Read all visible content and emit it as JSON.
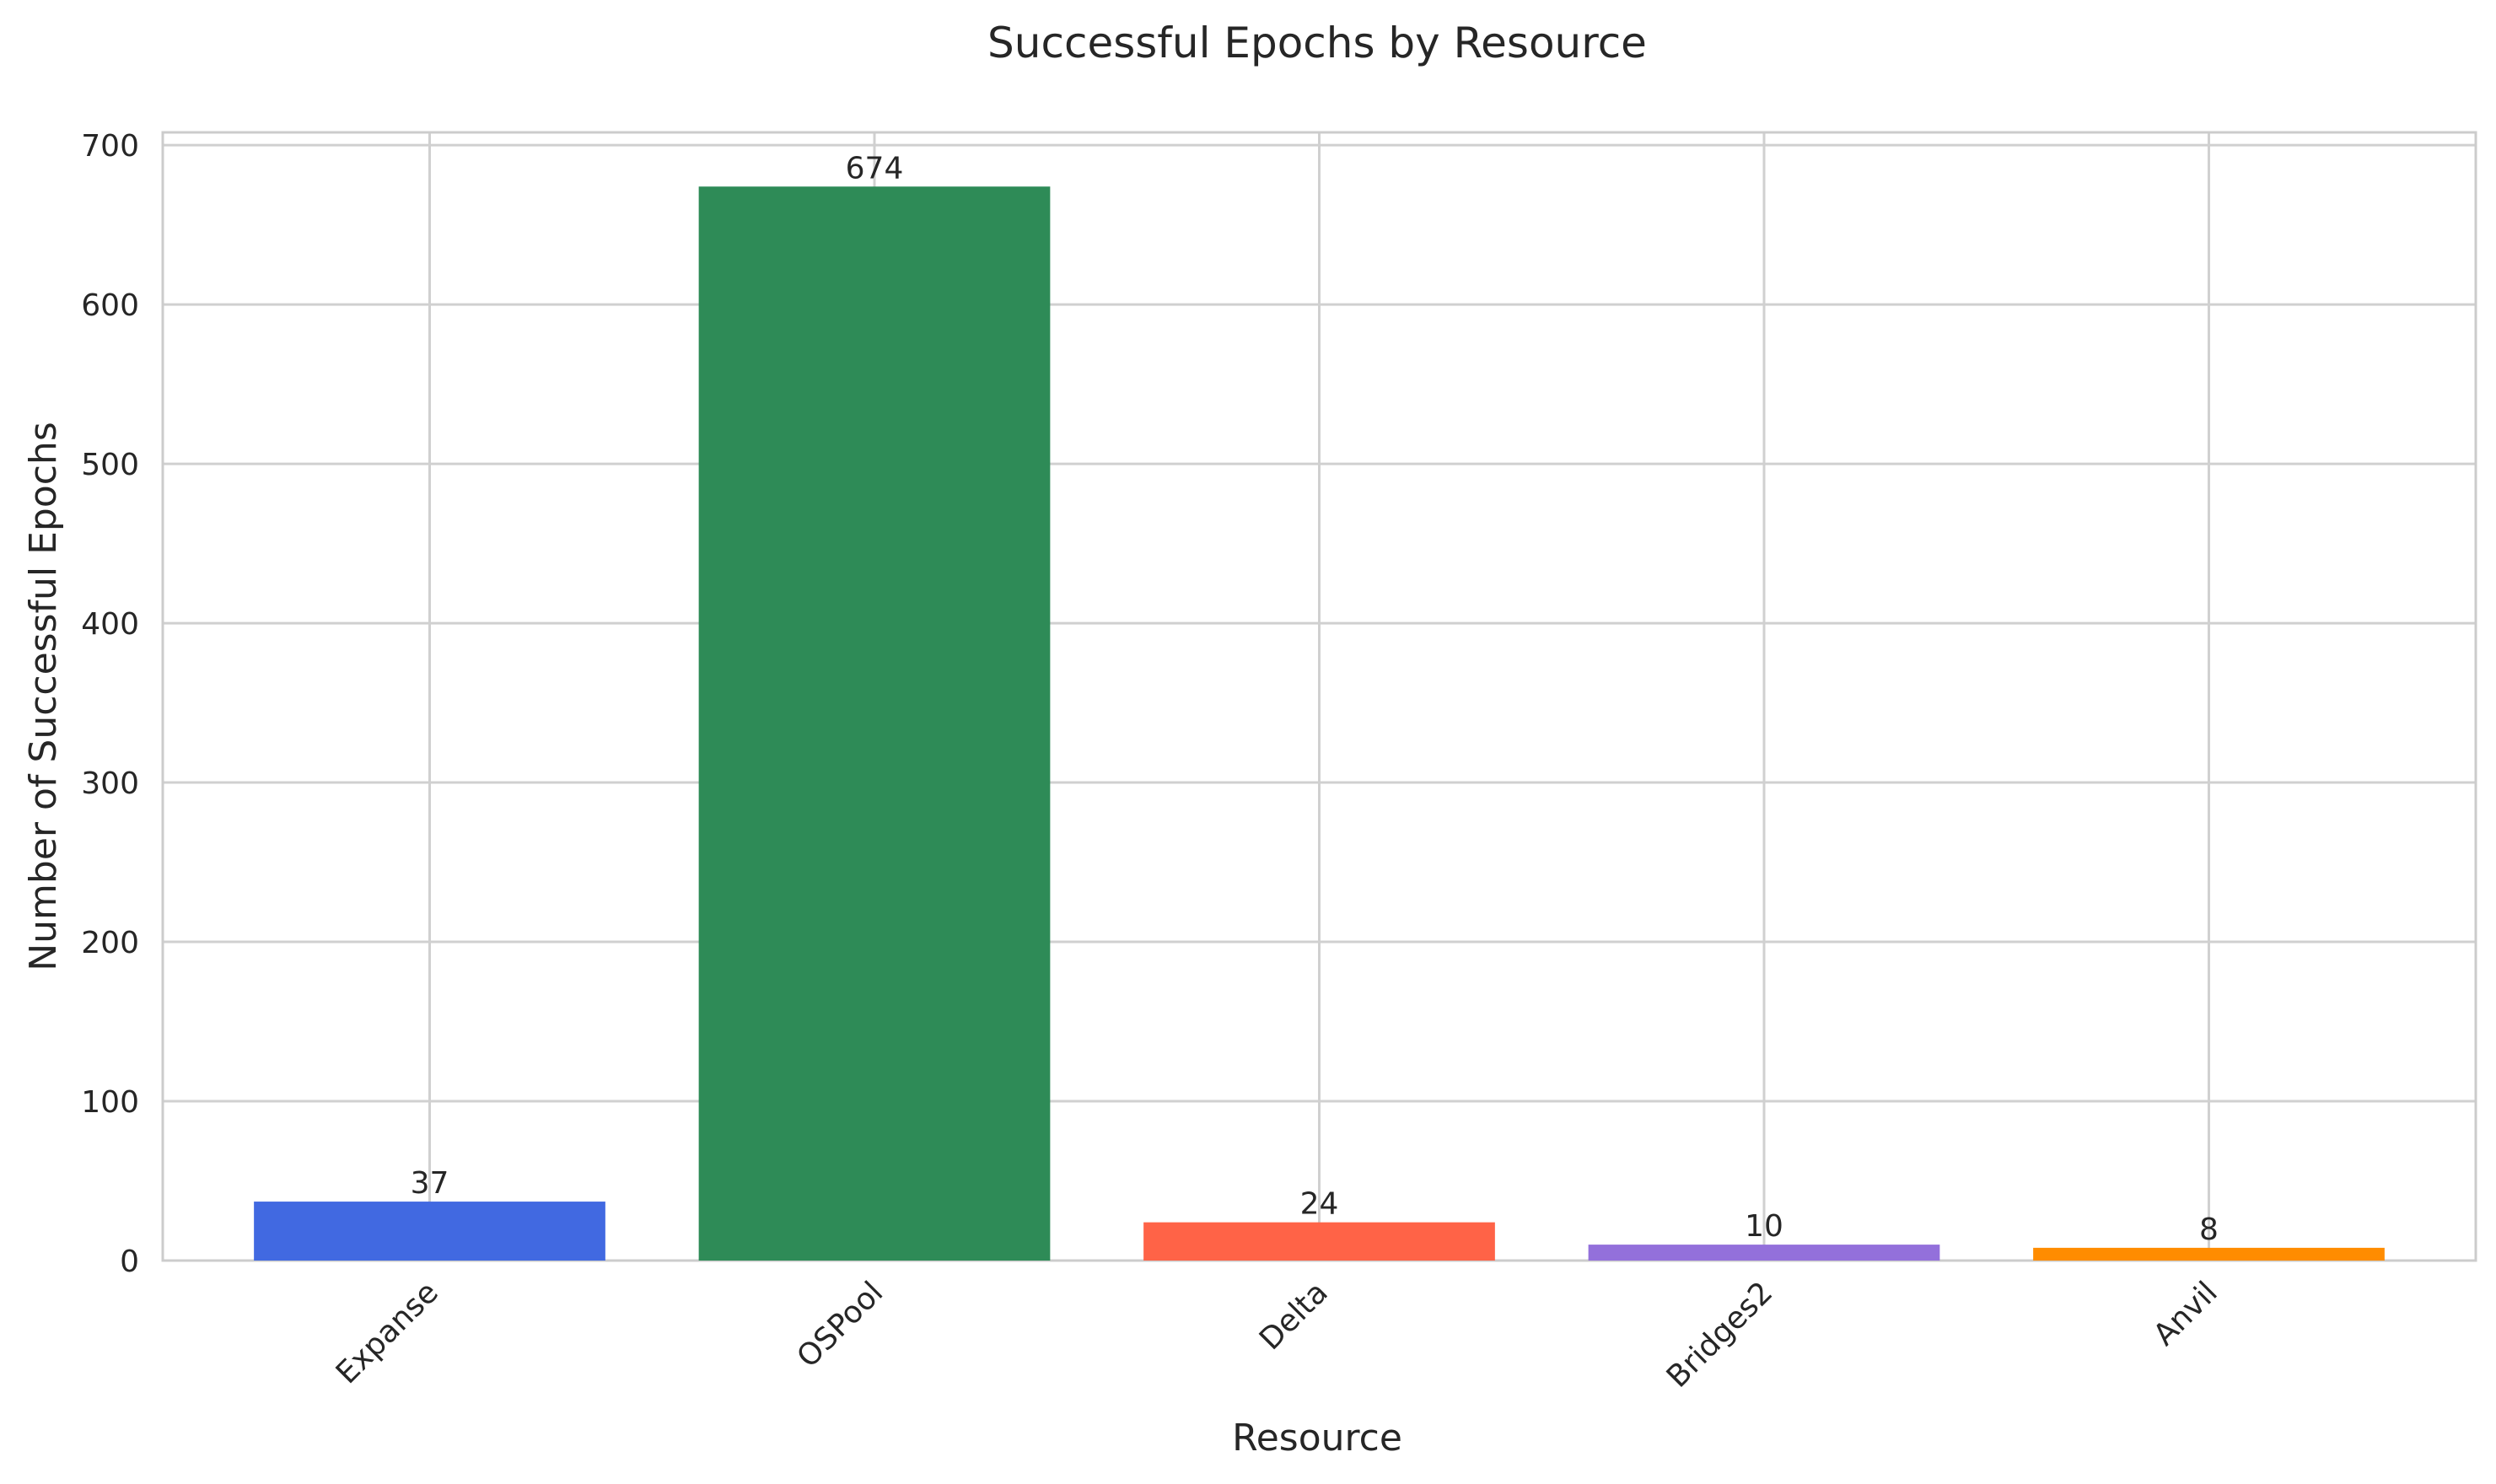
{
  "chart_data": {
    "type": "bar",
    "title": "Successful Epochs by Resource",
    "xlabel": "Resource",
    "ylabel": "Number of Successful Epochs",
    "categories": [
      "Expanse",
      "OSPool",
      "Delta",
      "Bridges2",
      "Anvil"
    ],
    "values": [
      37,
      674,
      24,
      10,
      8
    ],
    "colors": [
      "#4169e1",
      "#2e8b57",
      "#ff6347",
      "#9370db",
      "#ff8c00"
    ],
    "ylim": [
      0,
      708
    ],
    "yticks": [
      0,
      100,
      200,
      300,
      400,
      500,
      600,
      700
    ],
    "grid": true,
    "legend": "none"
  }
}
